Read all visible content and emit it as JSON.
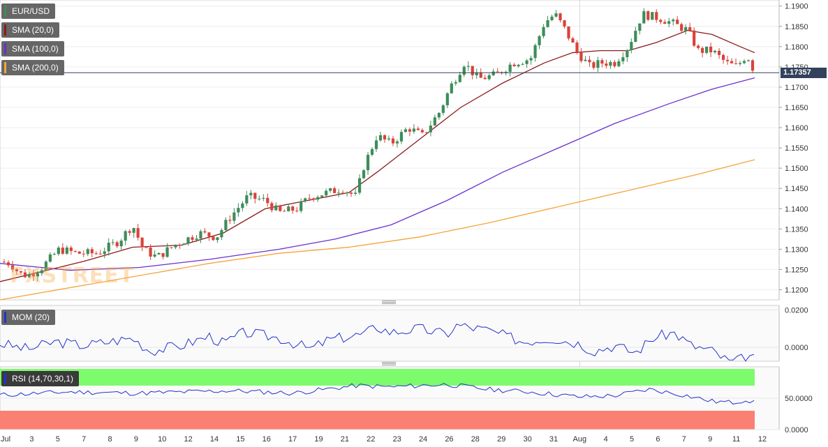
{
  "chart_data": {
    "type": "candlestick",
    "symbol": "EUR/USD",
    "last_price": "1.17357",
    "indicators": [
      {
        "name": "SMA (20,0)",
        "color": "#8b1a1a"
      },
      {
        "name": "SMA (100,0)",
        "color": "#6a2fd0"
      },
      {
        "name": "SMA (200,0)",
        "color": "#f5a33c"
      }
    ],
    "price_axis": {
      "ylim": [
        1.1175,
        1.1915
      ],
      "ticks": [
        "1.1900",
        "1.1850",
        "1.1800",
        "1.1750",
        "1.1700",
        "1.1650",
        "1.1600",
        "1.1550",
        "1.1500",
        "1.1450",
        "1.1400",
        "1.1350",
        "1.1300",
        "1.1250",
        "1.1200"
      ]
    },
    "x_axis": {
      "day_labels": [
        "Jul",
        "3",
        "5",
        "7",
        "8",
        "9",
        "10",
        "12",
        "14",
        "15",
        "16",
        "17",
        "19",
        "21",
        "22",
        "23",
        "24",
        "26",
        "28",
        "29",
        "30",
        "31",
        "Aug",
        "4",
        "5",
        "6",
        "7",
        "9",
        "11",
        "12"
      ]
    },
    "sma20_end": 1.1785,
    "sma100_end": 1.1723,
    "sma200_end": 1.1521,
    "mom": {
      "label": "MOM (20)",
      "ylim": [
        -0.0075,
        0.0225
      ],
      "ticks": [
        "0.0200",
        "0.0000"
      ],
      "color": "#2233cc"
    },
    "rsi": {
      "label": "RSI (14,70,30,1)",
      "ylim": [
        0,
        100
      ],
      "overbought": 70,
      "oversold": 30,
      "ticks": [
        "50.0000",
        "0.0000"
      ],
      "color": "#2233cc",
      "overbought_color": "#7cfc6c",
      "oversold_color": "#fa8072"
    },
    "watermark": "FXSTREET",
    "up_color": "#3d8c5a",
    "down_color": "#d9423a"
  }
}
